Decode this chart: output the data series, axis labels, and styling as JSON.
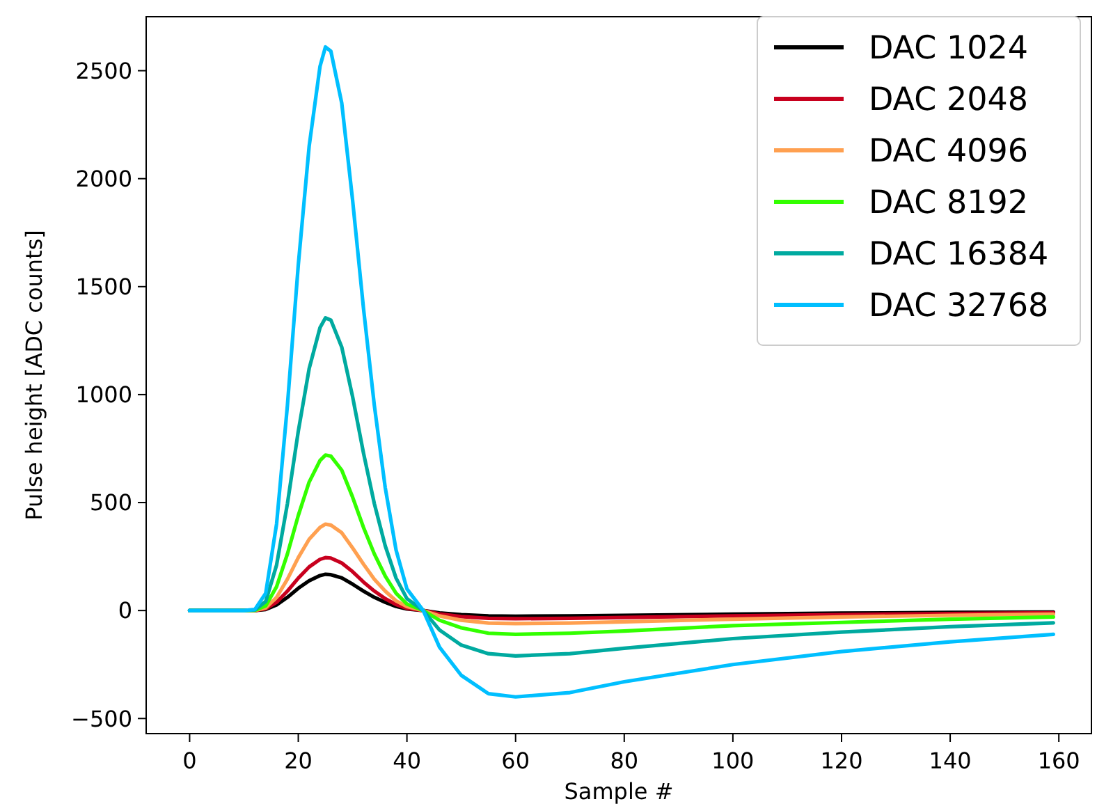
{
  "chart_data": {
    "type": "line",
    "xlabel": "Sample #",
    "ylabel": "Pulse height [ADC counts]",
    "x": [
      0,
      10,
      12,
      14,
      16,
      18,
      20,
      22,
      24,
      25,
      26,
      28,
      30,
      32,
      34,
      36,
      38,
      40,
      43,
      46,
      50,
      55,
      60,
      70,
      80,
      100,
      120,
      140,
      159
    ],
    "xlim": [
      -8,
      166
    ],
    "xticks": [
      0,
      20,
      40,
      60,
      80,
      100,
      120,
      140,
      160
    ],
    "ylim": [
      -570,
      2750
    ],
    "yticks": [
      {
        "value": -500,
        "label": "−500"
      },
      0,
      500,
      1000,
      1500,
      2000,
      2500
    ],
    "legend": "top right",
    "grid": false,
    "marker": "none",
    "line_style": "solid",
    "series": [
      {
        "name": "DAC 1024",
        "color": "#000000",
        "values": [
          0,
          0,
          0,
          5,
          26,
          61,
          103,
          138,
          162,
          168,
          166,
          151,
          122,
          90,
          61,
          38,
          19,
          7,
          0,
          -11,
          -19,
          -25,
          -26,
          -25,
          -22,
          -17,
          -12,
          -9,
          -7
        ]
      },
      {
        "name": "DAC 2048",
        "color": "#c8001e",
        "values": [
          0,
          0,
          0,
          8,
          38,
          90,
          150,
          202,
          237,
          245,
          243,
          220,
          180,
          132,
          90,
          55,
          28,
          10,
          0,
          -16,
          -28,
          -36,
          -38,
          -36,
          -32,
          -25,
          -19,
          -14,
          -10
        ]
      },
      {
        "name": "DAC 4096",
        "color": "#ffa050",
        "values": [
          0,
          0,
          1,
          12,
          61,
          145,
          245,
          330,
          385,
          400,
          396,
          360,
          290,
          215,
          145,
          90,
          45,
          18,
          0,
          -25,
          -45,
          -58,
          -60,
          -58,
          -52,
          -40,
          -30,
          -22,
          -17
        ]
      },
      {
        "name": "DAC 8192",
        "color": "#33ff00",
        "values": [
          0,
          0,
          1,
          22,
          110,
          262,
          440,
          595,
          695,
          720,
          715,
          650,
          525,
          385,
          262,
          160,
          80,
          30,
          0,
          -45,
          -80,
          -105,
          -110,
          -105,
          -95,
          -70,
          -55,
          -40,
          -30
        ]
      },
      {
        "name": "DAC 16384",
        "color": "#00aaa0",
        "values": [
          0,
          0,
          3,
          42,
          210,
          495,
          830,
          1120,
          1310,
          1355,
          1345,
          1220,
          990,
          730,
          495,
          300,
          150,
          55,
          0,
          -90,
          -160,
          -200,
          -210,
          -200,
          -175,
          -130,
          -100,
          -75,
          -57
        ]
      },
      {
        "name": "DAC 32768",
        "color": "#00bfff",
        "values": [
          0,
          0,
          5,
          80,
          400,
          950,
          1600,
          2150,
          2520,
          2610,
          2590,
          2350,
          1900,
          1400,
          950,
          570,
          280,
          100,
          0,
          -170,
          -300,
          -385,
          -400,
          -380,
          -330,
          -250,
          -190,
          -145,
          -110
        ]
      }
    ]
  }
}
